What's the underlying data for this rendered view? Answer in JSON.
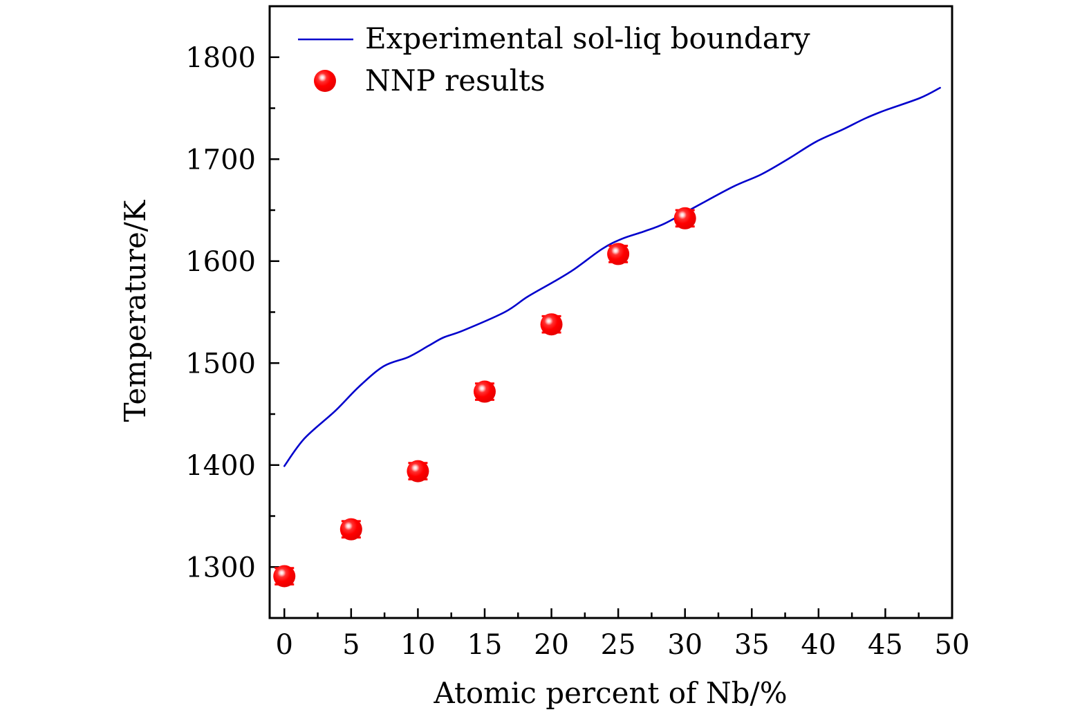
{
  "chart_data": {
    "type": "line+scatter",
    "title": "",
    "xlabel": "Atomic percent of Nb/%",
    "ylabel": "Temperature/K",
    "xlim": [
      -1.1,
      50
    ],
    "ylim": [
      1250,
      1850
    ],
    "x_ticks": [
      0,
      5,
      10,
      15,
      20,
      25,
      30,
      35,
      40,
      45,
      50
    ],
    "x_minor_step": 2.5,
    "y_ticks": [
      1300,
      1400,
      1500,
      1600,
      1700,
      1800
    ],
    "y_minor_step": 50,
    "grid": false,
    "tick_direction": "in",
    "legend_position": "top-left",
    "colors": {
      "line": "#0000cc",
      "marker": "#ff0000",
      "frame": "#000000"
    },
    "series": [
      {
        "name": "Experimental sol-liq boundary",
        "kind": "line",
        "x": [
          0,
          1.5,
          3.8,
          5.6,
          7.45,
          9.3,
          10.8,
          11.9,
          13.4,
          16.5,
          18.2,
          20.2,
          21.7,
          23.8,
          25.3,
          26.9,
          28.5,
          30.75,
          33.6,
          35.7,
          37.7,
          39.8,
          41.8,
          43.5,
          45,
          47.6,
          49.1
        ],
        "y": [
          1399,
          1426,
          1453,
          1477,
          1497,
          1506,
          1517,
          1525,
          1532,
          1550,
          1565,
          1580,
          1592,
          1612,
          1622,
          1629,
          1637,
          1653,
          1673,
          1685,
          1700,
          1717,
          1729,
          1740,
          1748,
          1760,
          1770
        ]
      },
      {
        "name": "NNP results",
        "kind": "scatter",
        "x": [
          0,
          5,
          10,
          15,
          20,
          25,
          30
        ],
        "y": [
          1291,
          1337,
          1394,
          1472,
          1538,
          1607,
          1642
        ],
        "error": [
          8,
          8,
          8,
          8,
          8,
          8,
          8
        ]
      }
    ]
  }
}
